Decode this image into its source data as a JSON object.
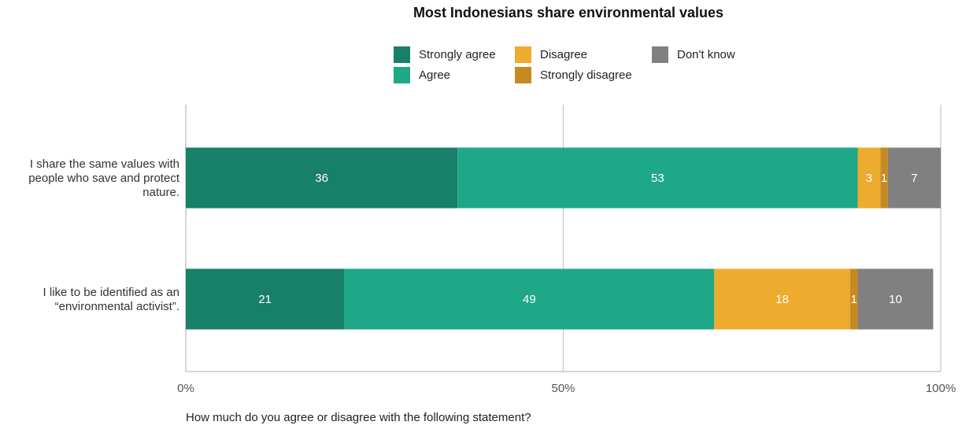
{
  "chart_data": {
    "type": "bar",
    "orientation": "horizontal",
    "stacked": true,
    "title": "Most Indonesians share environmental values",
    "categories": [
      "I share the same values with people who save and protect nature.",
      "I like to be identified as an “environmental activist”."
    ],
    "category_lines": [
      [
        "I share the same values with",
        "people who save and protect",
        "nature."
      ],
      [
        "I like to be identified as an",
        "“environmental activist”."
      ]
    ],
    "series": [
      {
        "name": "Strongly agree",
        "color": "#187f69",
        "values": [
          36,
          21
        ]
      },
      {
        "name": "Agree",
        "color": "#1ea887",
        "values": [
          53,
          49
        ]
      },
      {
        "name": "Disagree",
        "color": "#edab2f",
        "values": [
          3,
          18
        ]
      },
      {
        "name": "Strongly disagree",
        "color": "#c68b20",
        "values": [
          1,
          1
        ]
      },
      {
        "name": "Don't know",
        "color": "#808080",
        "values": [
          7,
          10
        ]
      }
    ],
    "xlim": [
      0,
      100
    ],
    "x_ticks": [
      "0%",
      "50%",
      "100%"
    ],
    "x_tick_values": [
      0,
      50,
      100
    ],
    "grid": true,
    "legend_position": "top",
    "xlabel": "How much do you agree or disagree with the following statement?"
  }
}
